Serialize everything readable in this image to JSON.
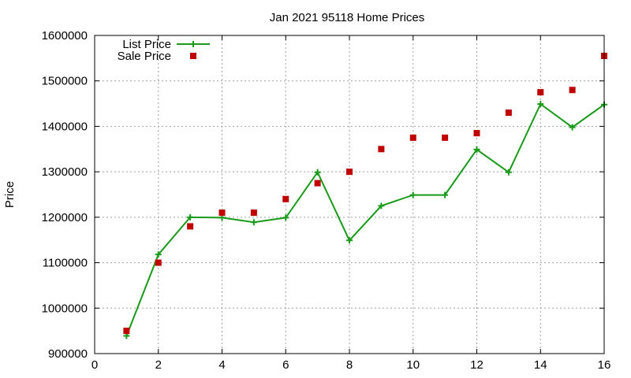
{
  "chart_data": {
    "type": "line",
    "title": "Jan 2021 95118 Home Prices",
    "xlabel": "",
    "ylabel": "Price",
    "xlim": [
      0,
      16
    ],
    "ylim": [
      900000,
      1600000
    ],
    "x_ticks": [
      0,
      2,
      4,
      6,
      8,
      10,
      12,
      14,
      16
    ],
    "y_ticks": [
      900000,
      1000000,
      1100000,
      1200000,
      1300000,
      1400000,
      1500000,
      1600000
    ],
    "grid": true,
    "legend_position": "top-left",
    "series": [
      {
        "name": "List Price",
        "style": "line-with-plus-markers",
        "color": "#1a9a1a",
        "x": [
          1,
          2,
          3,
          4,
          5,
          6,
          7,
          8,
          9,
          10,
          11,
          12,
          13,
          14,
          15,
          16
        ],
        "values": [
          939000,
          1118000,
          1200000,
          1199000,
          1189000,
          1199000,
          1299000,
          1149000,
          1225000,
          1249000,
          1249000,
          1349000,
          1299000,
          1449000,
          1398000,
          1448000
        ]
      },
      {
        "name": "Sale Price",
        "style": "square-markers",
        "color": "#c00000",
        "x": [
          1,
          2,
          3,
          4,
          5,
          6,
          7,
          8,
          9,
          10,
          11,
          12,
          13,
          14,
          15,
          16
        ],
        "values": [
          950000,
          1100000,
          1180000,
          1210000,
          1210000,
          1240000,
          1275000,
          1300000,
          1350000,
          1375000,
          1375000,
          1385000,
          1430000,
          1475000,
          1480000,
          1555000
        ]
      }
    ]
  }
}
